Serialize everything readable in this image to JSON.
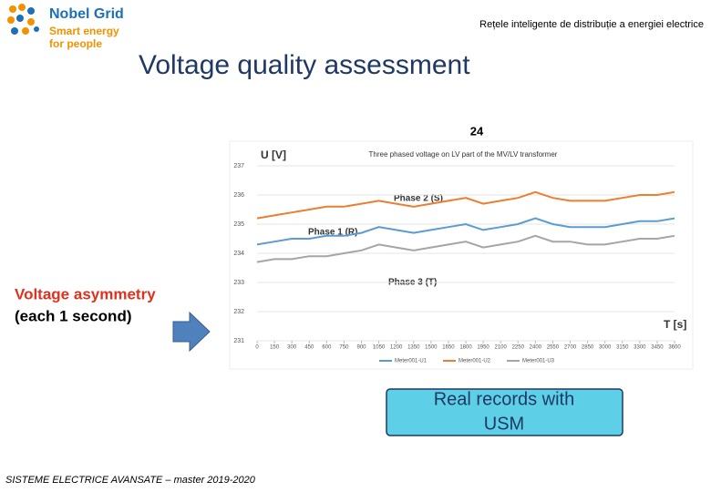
{
  "header": {
    "brand": "Nobel Grid",
    "tagline_1": "Smart energy",
    "tagline_2": "for people",
    "subtitle": "Rețele inteligente de distribuție a energiei electrice"
  },
  "title": "Voltage quality assessment",
  "page_number": "24",
  "side_text": {
    "line_1": "Voltage asymmetry",
    "line_2": "(each 1 second)"
  },
  "callout": {
    "line_1": "Real records with",
    "line_2": "USM"
  },
  "footer": "SISTEME ELECTRICE AVANSATE – master 2019-2020",
  "chart_data": {
    "type": "line",
    "title": "Three phased voltage on LV part of the MV/LV transformer",
    "y_label": "U [V]",
    "x_label": "T [s]",
    "x": [
      0,
      150,
      300,
      450,
      600,
      750,
      900,
      1050,
      1200,
      1350,
      1500,
      1650,
      1800,
      1950,
      2100,
      2250,
      2400,
      2550,
      2700,
      2850,
      3000,
      3150,
      3300,
      3450,
      3600
    ],
    "series": [
      {
        "name": "Meter001-U1",
        "color": "#5b9bd5",
        "values": [
          234.3,
          234.4,
          234.5,
          234.5,
          234.6,
          234.6,
          234.7,
          234.9,
          234.8,
          234.7,
          234.8,
          234.9,
          235.0,
          234.8,
          234.9,
          235.0,
          235.2,
          235.0,
          234.9,
          234.9,
          234.9,
          235.0,
          235.1,
          235.1,
          235.2
        ]
      },
      {
        "name": "Meter001-U2",
        "color": "#ed7d31",
        "values": [
          235.2,
          235.3,
          235.4,
          235.5,
          235.6,
          235.6,
          235.7,
          235.8,
          235.7,
          235.6,
          235.7,
          235.8,
          235.9,
          235.7,
          235.8,
          235.9,
          236.1,
          235.9,
          235.8,
          235.8,
          235.8,
          235.9,
          236.0,
          236.0,
          236.1
        ]
      },
      {
        "name": "Meter001-U3",
        "color": "#a5a5a5",
        "values": [
          233.7,
          233.8,
          233.8,
          233.9,
          233.9,
          234.0,
          234.1,
          234.3,
          234.2,
          234.1,
          234.2,
          234.3,
          234.4,
          234.2,
          234.3,
          234.4,
          234.6,
          234.4,
          234.4,
          234.3,
          234.3,
          234.4,
          234.5,
          234.5,
          234.6
        ]
      }
    ],
    "annotations": [
      "Phase 2 (S)",
      "Phase 1 (R)",
      "Phase 3 (T)"
    ],
    "xlim": [
      0,
      3600
    ],
    "ylim": [
      231,
      237
    ],
    "xticks": [
      0,
      150,
      300,
      450,
      600,
      750,
      900,
      1050,
      1200,
      1350,
      1500,
      1650,
      1800,
      1950,
      2100,
      2250,
      2400,
      2550,
      2700,
      2850,
      3000,
      3150,
      3300,
      3450,
      3600
    ],
    "yticks": [
      231,
      232,
      233,
      234,
      235,
      236,
      237
    ],
    "grid": true
  }
}
